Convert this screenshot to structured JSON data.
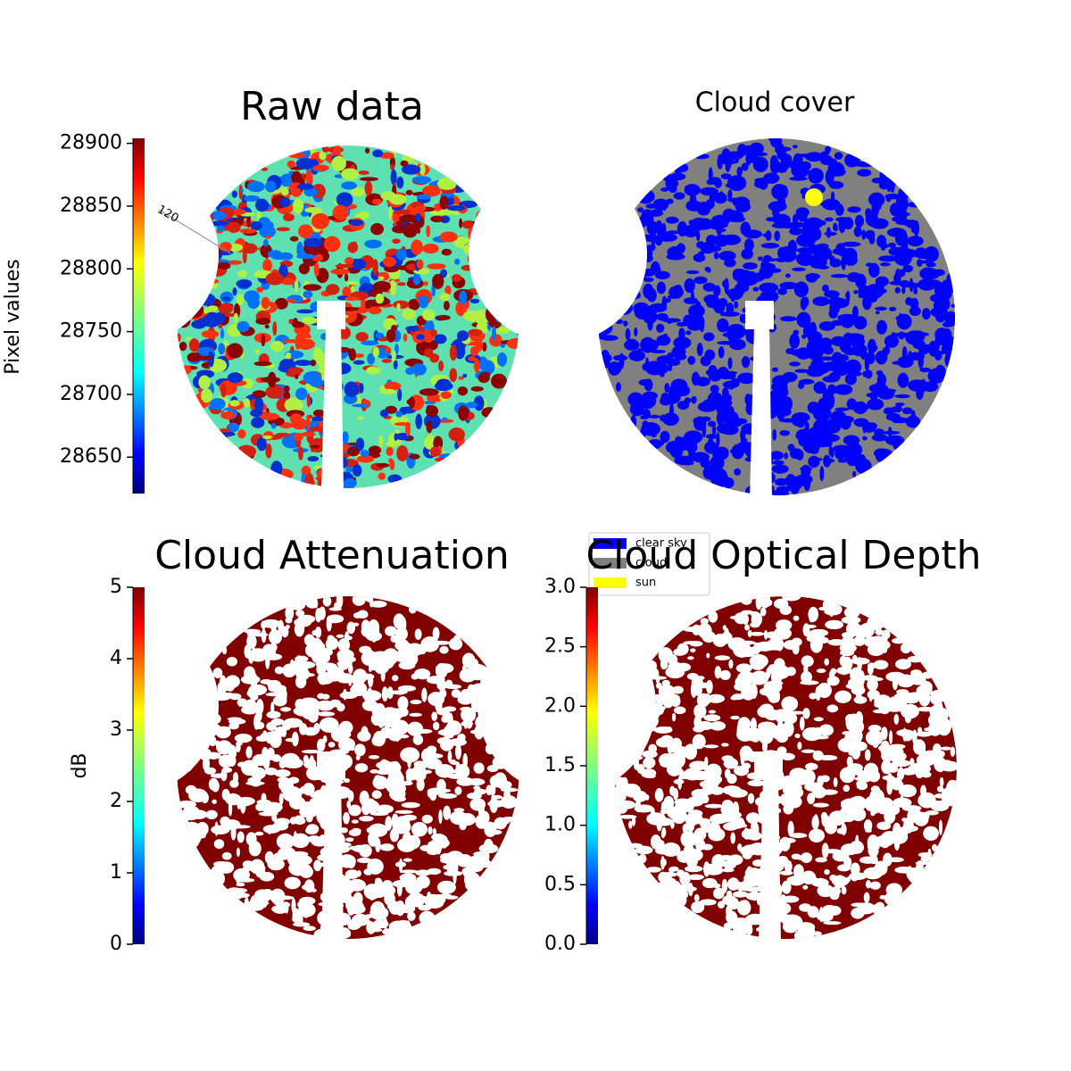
{
  "chart_data": [
    {
      "type": "image",
      "title": "Raw data",
      "colorbar_label": "Pixel values",
      "colormap": "jet",
      "ylim": [
        28621,
        28904
      ],
      "yticks": [
        28650,
        28700,
        28750,
        28800,
        28850,
        28900
      ],
      "annotations": [
        "120"
      ]
    },
    {
      "type": "image",
      "title": "Cloud cover",
      "legend": "lower left",
      "series": [
        {
          "name": "clear sky",
          "color": "#0000ff"
        },
        {
          "name": "cloud",
          "color": "#808080"
        },
        {
          "name": "sun",
          "color": "#ffff00"
        }
      ]
    },
    {
      "type": "image",
      "title": "Cloud Attenuation",
      "colorbar_label": "dB",
      "colormap": "jet",
      "ylim": [
        0,
        5
      ],
      "yticks": [
        0,
        1,
        2,
        3,
        4,
        5
      ]
    },
    {
      "type": "image",
      "title": "Cloud Optical Depth",
      "colormap": "jet",
      "ylim": [
        0,
        3
      ],
      "yticks": [
        {
          "value": 0,
          "label": "0.0"
        },
        {
          "value": 0.5,
          "label": "0.5"
        },
        {
          "value": 1,
          "label": "1.0"
        },
        {
          "value": 1.5,
          "label": "1.5"
        },
        {
          "value": 2,
          "label": "2.0"
        },
        {
          "value": 2.5,
          "label": "2.5"
        },
        {
          "value": 3,
          "label": "3.0"
        }
      ]
    }
  ]
}
